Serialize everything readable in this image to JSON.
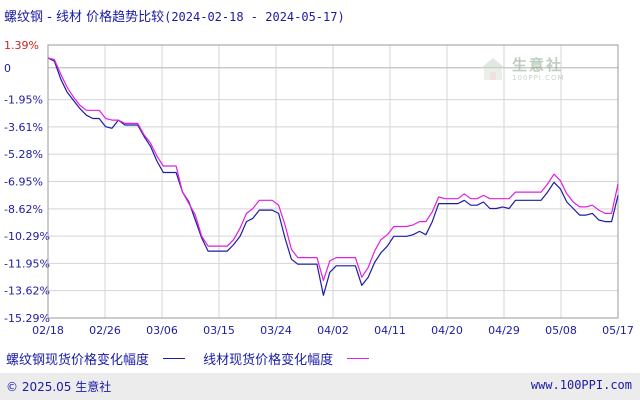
{
  "header": {
    "title_main": "螺纹钢 - 线材 价格趋势比较",
    "title_range": "(2024-02-18 - 2024-05-17)"
  },
  "watermark": {
    "text": "生意社",
    "sub": "100PPI.COM"
  },
  "legend": {
    "items": [
      {
        "label": "螺纹钢现货价格变化幅度",
        "color": "#1c1ca6"
      },
      {
        "label": "线材现货价格变化幅度",
        "color": "#e020e0"
      }
    ]
  },
  "footer": {
    "left": "© 2025.05 生意社",
    "right": "www.100PPI.com"
  },
  "chart_data": {
    "type": "line",
    "ylabel": "",
    "xlabel": "",
    "ylim": [
      -15.29,
      1.39
    ],
    "yticks": [
      {
        "value": 1.39,
        "label": "1.39%",
        "color": "#d02020"
      },
      {
        "value": 0,
        "label": "0",
        "color": "#1c1ca6"
      },
      {
        "value": -1.95,
        "label": "-1.95%",
        "color": "#1c1ca6"
      },
      {
        "value": -3.61,
        "label": "-3.61%",
        "color": "#1c1ca6"
      },
      {
        "value": -5.28,
        "label": "-5.28%",
        "color": "#1c1ca6"
      },
      {
        "value": -6.95,
        "label": "-6.95%",
        "color": "#1c1ca6"
      },
      {
        "value": -8.62,
        "label": "-8.62%",
        "color": "#1c1ca6"
      },
      {
        "value": -10.29,
        "label": "-10.29%",
        "color": "#1c1ca6"
      },
      {
        "value": -11.95,
        "label": "-11.95%",
        "color": "#1c1ca6"
      },
      {
        "value": -13.62,
        "label": "-13.62%",
        "color": "#1c1ca6"
      },
      {
        "value": -15.29,
        "label": "-15.29%",
        "color": "#1c1ca6"
      }
    ],
    "xtick_labels": [
      "02/18",
      "02/26",
      "03/06",
      "03/15",
      "03/24",
      "04/02",
      "04/11",
      "04/20",
      "04/29",
      "05/08",
      "05/17"
    ],
    "grid": true,
    "x_start": "2024-02-18",
    "x_end": "2024-05-17",
    "series": [
      {
        "name": "螺纹钢现货价格变化幅度",
        "color": "#1c1ca6",
        "points": [
          [
            "2024-02-18",
            0.6
          ],
          [
            "2024-02-19",
            0.4
          ],
          [
            "2024-02-20",
            -0.7
          ],
          [
            "2024-02-21",
            -1.5
          ],
          [
            "2024-02-22",
            -2.0
          ],
          [
            "2024-02-23",
            -2.5
          ],
          [
            "2024-02-24",
            -2.9
          ],
          [
            "2024-02-25",
            -3.1
          ],
          [
            "2024-02-26",
            -3.1
          ],
          [
            "2024-02-27",
            -3.6
          ],
          [
            "2024-02-28",
            -3.7
          ],
          [
            "2024-02-29",
            -3.2
          ],
          [
            "2024-03-01",
            -3.5
          ],
          [
            "2024-03-02",
            -3.5
          ],
          [
            "2024-03-03",
            -3.5
          ],
          [
            "2024-03-04",
            -4.2
          ],
          [
            "2024-03-05",
            -4.8
          ],
          [
            "2024-03-06",
            -5.7
          ],
          [
            "2024-03-07",
            -6.4
          ],
          [
            "2024-03-08",
            -6.4
          ],
          [
            "2024-03-09",
            -6.4
          ],
          [
            "2024-03-10",
            -7.6
          ],
          [
            "2024-03-11",
            -8.2
          ],
          [
            "2024-03-12",
            -9.3
          ],
          [
            "2024-03-13",
            -10.4
          ],
          [
            "2024-03-14",
            -11.2
          ],
          [
            "2024-03-15",
            -11.2
          ],
          [
            "2024-03-16",
            -11.2
          ],
          [
            "2024-03-17",
            -11.2
          ],
          [
            "2024-03-18",
            -10.8
          ],
          [
            "2024-03-19",
            -10.3
          ],
          [
            "2024-03-20",
            -9.4
          ],
          [
            "2024-03-21",
            -9.2
          ],
          [
            "2024-03-22",
            -8.7
          ],
          [
            "2024-03-23",
            -8.7
          ],
          [
            "2024-03-24",
            -8.7
          ],
          [
            "2024-03-25",
            -8.9
          ],
          [
            "2024-03-26",
            -10.4
          ],
          [
            "2024-03-27",
            -11.7
          ],
          [
            "2024-03-28",
            -12.0
          ],
          [
            "2024-03-29",
            -12.0
          ],
          [
            "2024-03-30",
            -12.0
          ],
          [
            "2024-03-31",
            -12.0
          ],
          [
            "2024-04-01",
            -13.9
          ],
          [
            "2024-04-02",
            -12.5
          ],
          [
            "2024-04-03",
            -12.1
          ],
          [
            "2024-04-04",
            -12.1
          ],
          [
            "2024-04-05",
            -12.1
          ],
          [
            "2024-04-06",
            -12.1
          ],
          [
            "2024-04-07",
            -13.3
          ],
          [
            "2024-04-08",
            -12.8
          ],
          [
            "2024-04-09",
            -11.9
          ],
          [
            "2024-04-10",
            -11.3
          ],
          [
            "2024-04-11",
            -10.9
          ],
          [
            "2024-04-12",
            -10.3
          ],
          [
            "2024-04-13",
            -10.3
          ],
          [
            "2024-04-14",
            -10.3
          ],
          [
            "2024-04-15",
            -10.2
          ],
          [
            "2024-04-16",
            -10.0
          ],
          [
            "2024-04-17",
            -10.2
          ],
          [
            "2024-04-18",
            -9.4
          ],
          [
            "2024-04-19",
            -8.3
          ],
          [
            "2024-04-20",
            -8.3
          ],
          [
            "2024-04-21",
            -8.3
          ],
          [
            "2024-04-22",
            -8.3
          ],
          [
            "2024-04-23",
            -8.1
          ],
          [
            "2024-04-24",
            -8.4
          ],
          [
            "2024-04-25",
            -8.4
          ],
          [
            "2024-04-26",
            -8.2
          ],
          [
            "2024-04-27",
            -8.6
          ],
          [
            "2024-04-28",
            -8.6
          ],
          [
            "2024-04-29",
            -8.5
          ],
          [
            "2024-04-30",
            -8.6
          ],
          [
            "2024-05-01",
            -8.1
          ],
          [
            "2024-05-02",
            -8.1
          ],
          [
            "2024-05-03",
            -8.1
          ],
          [
            "2024-05-04",
            -8.1
          ],
          [
            "2024-05-05",
            -8.1
          ],
          [
            "2024-05-06",
            -7.6
          ],
          [
            "2024-05-07",
            -7.0
          ],
          [
            "2024-05-08",
            -7.4
          ],
          [
            "2024-05-09",
            -8.2
          ],
          [
            "2024-05-10",
            -8.6
          ],
          [
            "2024-05-11",
            -9.0
          ],
          [
            "2024-05-12",
            -9.0
          ],
          [
            "2024-05-13",
            -8.9
          ],
          [
            "2024-05-14",
            -9.3
          ],
          [
            "2024-05-15",
            -9.4
          ],
          [
            "2024-05-16",
            -9.4
          ],
          [
            "2024-05-17",
            -7.8
          ]
        ]
      },
      {
        "name": "线材现货价格变化幅度",
        "color": "#e020e0",
        "points": [
          [
            "2024-02-18",
            0.6
          ],
          [
            "2024-02-19",
            0.5
          ],
          [
            "2024-02-20",
            -0.4
          ],
          [
            "2024-02-21",
            -1.2
          ],
          [
            "2024-02-22",
            -1.8
          ],
          [
            "2024-02-23",
            -2.3
          ],
          [
            "2024-02-24",
            -2.6
          ],
          [
            "2024-02-25",
            -2.6
          ],
          [
            "2024-02-26",
            -2.6
          ],
          [
            "2024-02-27",
            -3.1
          ],
          [
            "2024-02-28",
            -3.2
          ],
          [
            "2024-02-29",
            -3.2
          ],
          [
            "2024-03-01",
            -3.4
          ],
          [
            "2024-03-02",
            -3.4
          ],
          [
            "2024-03-03",
            -3.4
          ],
          [
            "2024-03-04",
            -4.1
          ],
          [
            "2024-03-05",
            -4.6
          ],
          [
            "2024-03-06",
            -5.4
          ],
          [
            "2024-03-07",
            -6.0
          ],
          [
            "2024-03-08",
            -6.0
          ],
          [
            "2024-03-09",
            -6.0
          ],
          [
            "2024-03-10",
            -7.6
          ],
          [
            "2024-03-11",
            -8.3
          ],
          [
            "2024-03-12",
            -9.0
          ],
          [
            "2024-03-13",
            -10.3
          ],
          [
            "2024-03-14",
            -10.9
          ],
          [
            "2024-03-15",
            -10.9
          ],
          [
            "2024-03-16",
            -10.9
          ],
          [
            "2024-03-17",
            -10.9
          ],
          [
            "2024-03-18",
            -10.5
          ],
          [
            "2024-03-19",
            -9.8
          ],
          [
            "2024-03-20",
            -8.9
          ],
          [
            "2024-03-21",
            -8.6
          ],
          [
            "2024-03-22",
            -8.1
          ],
          [
            "2024-03-23",
            -8.1
          ],
          [
            "2024-03-24",
            -8.1
          ],
          [
            "2024-03-25",
            -8.4
          ],
          [
            "2024-03-26",
            -9.6
          ],
          [
            "2024-03-27",
            -11.1
          ],
          [
            "2024-03-28",
            -11.6
          ],
          [
            "2024-03-29",
            -11.6
          ],
          [
            "2024-03-30",
            -11.6
          ],
          [
            "2024-03-31",
            -11.6
          ],
          [
            "2024-04-01",
            -13.0
          ],
          [
            "2024-04-02",
            -11.8
          ],
          [
            "2024-04-03",
            -11.6
          ],
          [
            "2024-04-04",
            -11.6
          ],
          [
            "2024-04-05",
            -11.6
          ],
          [
            "2024-04-06",
            -11.6
          ],
          [
            "2024-04-07",
            -12.8
          ],
          [
            "2024-04-08",
            -12.2
          ],
          [
            "2024-04-09",
            -11.2
          ],
          [
            "2024-04-10",
            -10.5
          ],
          [
            "2024-04-11",
            -10.2
          ],
          [
            "2024-04-12",
            -9.7
          ],
          [
            "2024-04-13",
            -9.7
          ],
          [
            "2024-04-14",
            -9.7
          ],
          [
            "2024-04-15",
            -9.6
          ],
          [
            "2024-04-16",
            -9.4
          ],
          [
            "2024-04-17",
            -9.4
          ],
          [
            "2024-04-18",
            -8.8
          ],
          [
            "2024-04-19",
            -7.9
          ],
          [
            "2024-04-20",
            -8.0
          ],
          [
            "2024-04-21",
            -8.0
          ],
          [
            "2024-04-22",
            -8.0
          ],
          [
            "2024-04-23",
            -7.7
          ],
          [
            "2024-04-24",
            -8.0
          ],
          [
            "2024-04-25",
            -8.0
          ],
          [
            "2024-04-26",
            -7.8
          ],
          [
            "2024-04-27",
            -8.0
          ],
          [
            "2024-04-28",
            -8.0
          ],
          [
            "2024-04-29",
            -8.0
          ],
          [
            "2024-04-30",
            -8.0
          ],
          [
            "2024-05-01",
            -7.6
          ],
          [
            "2024-05-02",
            -7.6
          ],
          [
            "2024-05-03",
            -7.6
          ],
          [
            "2024-05-04",
            -7.6
          ],
          [
            "2024-05-05",
            -7.6
          ],
          [
            "2024-05-06",
            -7.1
          ],
          [
            "2024-05-07",
            -6.5
          ],
          [
            "2024-05-08",
            -6.9
          ],
          [
            "2024-05-09",
            -7.7
          ],
          [
            "2024-05-10",
            -8.2
          ],
          [
            "2024-05-11",
            -8.5
          ],
          [
            "2024-05-12",
            -8.5
          ],
          [
            "2024-05-13",
            -8.4
          ],
          [
            "2024-05-14",
            -8.7
          ],
          [
            "2024-05-15",
            -8.9
          ],
          [
            "2024-05-16",
            -8.9
          ],
          [
            "2024-05-17",
            -7.1
          ]
        ]
      }
    ]
  }
}
